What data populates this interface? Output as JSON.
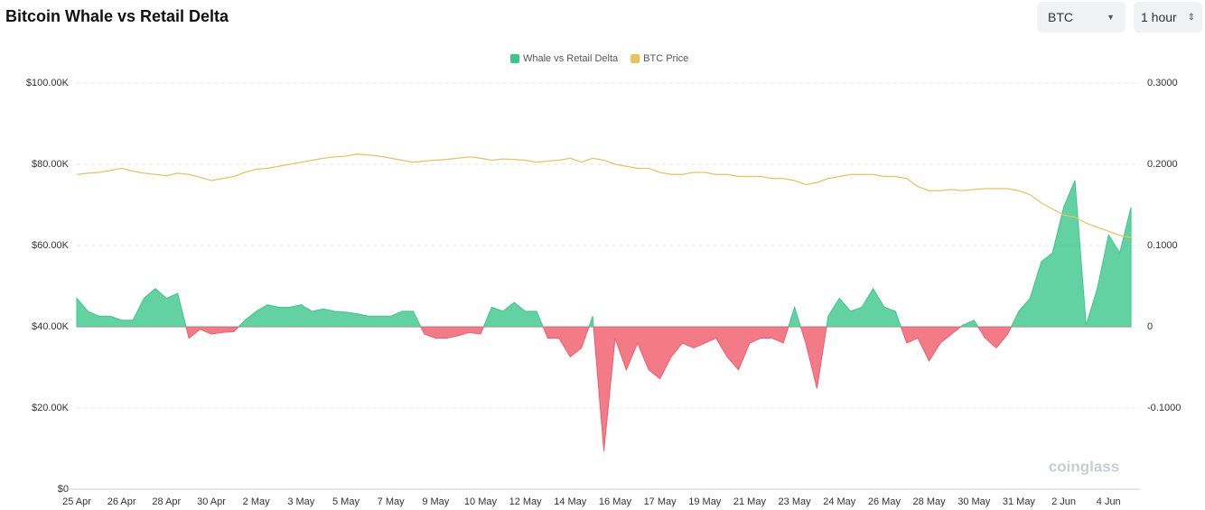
{
  "chart_data": {
    "type": "combo",
    "title": "Bitcoin Whale vs Retail Delta",
    "categories": [
      "25 Apr",
      null,
      null,
      null,
      "26 Apr",
      null,
      null,
      null,
      "28 Apr",
      null,
      null,
      null,
      "30 Apr",
      null,
      null,
      null,
      "2 May",
      null,
      null,
      null,
      "3 May",
      null,
      null,
      null,
      "5 May",
      null,
      null,
      null,
      "7 May",
      null,
      null,
      null,
      "9 May",
      null,
      null,
      null,
      "10 May",
      null,
      null,
      null,
      "12 May",
      null,
      null,
      null,
      "14 May",
      null,
      null,
      null,
      "16 May",
      null,
      null,
      null,
      "17 May",
      null,
      null,
      null,
      "19 May",
      null,
      null,
      null,
      "21 May",
      null,
      null,
      null,
      "23 May",
      null,
      null,
      null,
      "24 May",
      null,
      null,
      null,
      "26 May",
      null,
      null,
      null,
      "28 May",
      null,
      null,
      null,
      "30 May",
      null,
      null,
      null,
      "31 May",
      null,
      null,
      null,
      "2 Jun",
      null,
      null,
      null,
      "4 Jun",
      null,
      null
    ],
    "series": [
      {
        "name": "Whale vs Retail Delta",
        "color": "#3cc68a",
        "negative_color": "#f05a6a",
        "axis": "y2",
        "values": [
          0.035,
          0.019,
          0.013,
          0.013,
          0.008,
          0.008,
          0.035,
          0.047,
          0.035,
          0.041,
          -0.014,
          -0.003,
          -0.009,
          -0.007,
          -0.006,
          0.008,
          0.019,
          0.027,
          0.024,
          0.024,
          0.027,
          0.019,
          0.022,
          0.019,
          0.018,
          0.016,
          0.013,
          0.013,
          0.013,
          0.019,
          0.019,
          -0.009,
          -0.014,
          -0.014,
          -0.011,
          -0.007,
          -0.009,
          0.024,
          0.019,
          0.03,
          0.019,
          0.019,
          -0.014,
          -0.014,
          -0.037,
          -0.026,
          0.013,
          -0.153,
          -0.014,
          -0.053,
          -0.02,
          -0.053,
          -0.064,
          -0.037,
          -0.02,
          -0.026,
          -0.02,
          -0.014,
          -0.037,
          -0.053,
          -0.02,
          -0.014,
          -0.014,
          -0.02,
          0.024,
          -0.02,
          -0.076,
          0.013,
          0.035,
          0.019,
          0.024,
          0.047,
          0.024,
          0.019,
          -0.02,
          -0.014,
          -0.042,
          -0.02,
          -0.009,
          0.002,
          0.008,
          -0.014,
          -0.026,
          -0.009,
          0.019,
          0.035,
          0.08,
          0.091,
          0.147,
          0.18,
          0.002,
          0.047,
          0.113,
          0.091,
          0.147
        ]
      },
      {
        "name": "BTC Price",
        "color": "#e6c35c",
        "values": [
          77500,
          77800,
          78000,
          78500,
          79000,
          78300,
          77800,
          77500,
          77200,
          77800,
          77500,
          76800,
          76000,
          76500,
          77000,
          78000,
          78800,
          79000,
          79500,
          80000,
          80500,
          81000,
          81500,
          81800,
          82000,
          82500,
          82300,
          82000,
          81500,
          81000,
          80500,
          80800,
          81000,
          81200,
          81500,
          81800,
          81500,
          81000,
          81300,
          81200,
          81000,
          80500,
          80800,
          81000,
          81500,
          80500,
          81500,
          81000,
          80000,
          79500,
          79000,
          79000,
          78000,
          77500,
          77500,
          78000,
          78000,
          77500,
          77500,
          77000,
          77000,
          77000,
          76500,
          76500,
          76000,
          75000,
          75500,
          76500,
          77000,
          77500,
          77500,
          77500,
          77000,
          77000,
          76500,
          74500,
          73500,
          73500,
          73800,
          73500,
          73800,
          74000,
          74000,
          74000,
          73500,
          72500,
          70500,
          69000,
          67500,
          67000,
          65500,
          64500,
          63500,
          62500,
          62000
        ]
      }
    ],
    "ylim": [
      0,
      100000
    ],
    "yticks": [
      {
        "value": 0,
        "label": "$0"
      },
      {
        "value": 20000,
        "label": "$20.00K"
      },
      {
        "value": 40000,
        "label": "$40.00K"
      },
      {
        "value": 60000,
        "label": "$60.00K"
      },
      {
        "value": 80000,
        "label": "$80.00K"
      },
      {
        "value": 100000,
        "label": "$100.00K"
      }
    ],
    "y2lim": [
      -0.2,
      0.3
    ],
    "y2ticks": [
      {
        "value": -0.1,
        "label": "-0.1000"
      },
      0,
      {
        "value": 0.1,
        "label": "0.1000"
      },
      {
        "value": 0.2,
        "label": "0.2000"
      },
      {
        "value": 0.3,
        "label": "0.3000"
      }
    ],
    "grid": true,
    "legend": "top"
  },
  "controls": {
    "asset": "BTC",
    "interval": "1 hour"
  },
  "watermark": "coinglass"
}
